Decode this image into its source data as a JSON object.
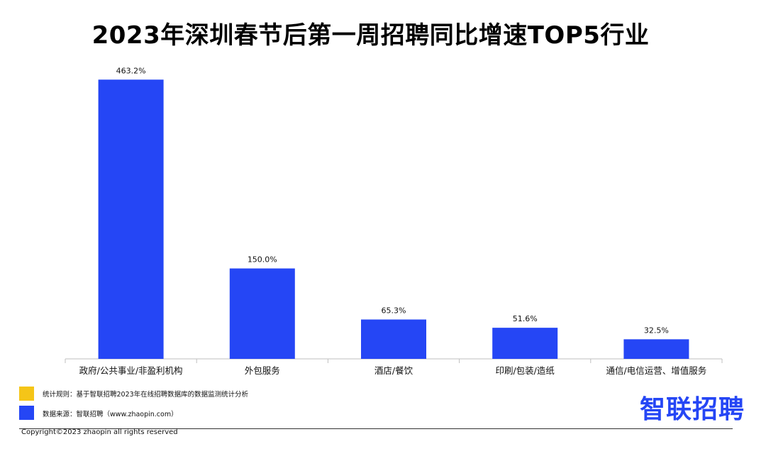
{
  "title": "2023年深圳春节后第一周招聘同比增速TOP5行业",
  "chart_data": {
    "type": "bar",
    "categories": [
      "政府/公共事业/非盈利机构",
      "外包服务",
      "酒店/餐饮",
      "印刷/包装/造纸",
      "通信/电信运营、增值服务"
    ],
    "values": [
      463.2,
      150.0,
      65.3,
      51.6,
      32.5
    ],
    "data_labels": [
      "463.2%",
      "150.0%",
      "65.3%",
      "51.6%",
      "32.5%"
    ],
    "unit": "%",
    "ylim": [
      0,
      480
    ],
    "bar_color": "#2546f5",
    "grid": false,
    "axes_visible": {
      "x": true,
      "y": false
    }
  },
  "footer": {
    "rule_text": "统计规则：基于智联招聘2023年在线招聘数据库的数据监测统计分析",
    "source_text": "数据来源：智联招聘（www.zhaopin.com）",
    "rule_color": "#f5c518",
    "source_color": "#2546f5",
    "copyright": "Copyright©2023 zhaopin all rights reserved"
  },
  "brand": {
    "name": "智联招聘",
    "color": "#2546f5"
  }
}
